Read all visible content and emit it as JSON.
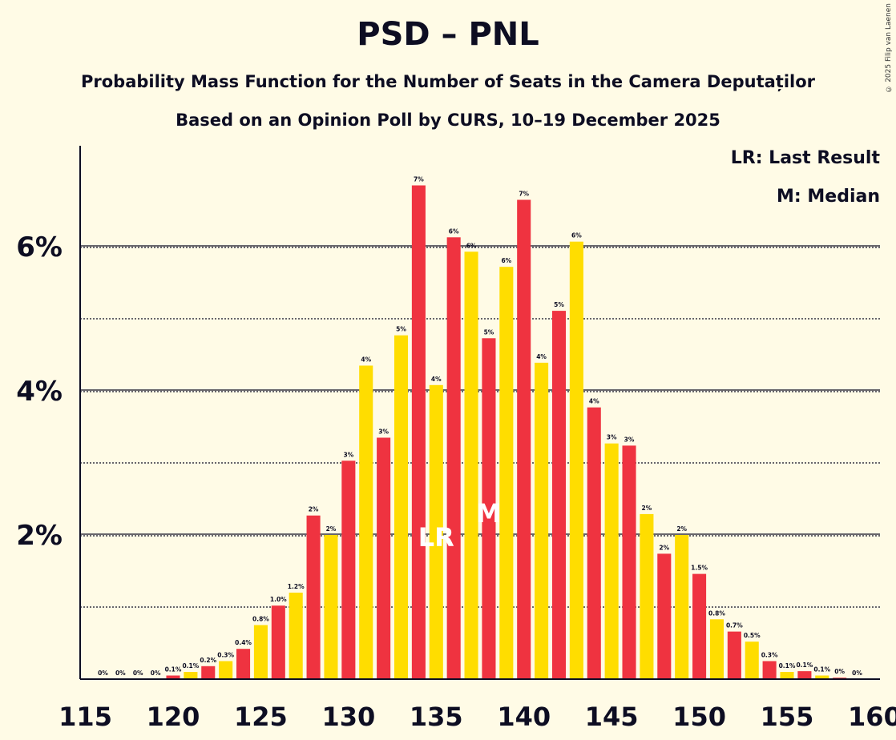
{
  "title": "PSD – PNL",
  "subtitle": "Probability Mass Function for the Number of Seats in the Camera Deputaților",
  "subtitle2": "Based on an Opinion Poll by CURS, 10–19 December 2025",
  "copyright": "© 2025 Filip van Laenen",
  "legend": {
    "last_result": "LR: Last Result",
    "median": "M: Median"
  },
  "colors": {
    "red": "#ef3340",
    "yellow": "#ffdd00",
    "background": "#fffbe6",
    "text": "#0d0d22"
  },
  "chart_data": {
    "type": "bar",
    "xlabel": "",
    "ylabel": "",
    "ylim": [
      0,
      7.4
    ],
    "y_ticks": [
      {
        "value": 2,
        "label": "2%"
      },
      {
        "value": 4,
        "label": "4%"
      },
      {
        "value": 6,
        "label": "6%"
      }
    ],
    "minor_grid": [
      1,
      3,
      5
    ],
    "x_ticks": [
      115,
      120,
      125,
      130,
      135,
      140,
      145,
      150,
      155,
      160
    ],
    "x_tick_labels": [
      "115",
      "120",
      "125",
      "130",
      "135",
      "140",
      "145",
      "150",
      "155",
      "160"
    ],
    "categories": [
      116,
      117,
      118,
      119,
      120,
      121,
      122,
      123,
      124,
      125,
      126,
      127,
      128,
      129,
      130,
      131,
      132,
      133,
      134,
      135,
      136,
      137,
      138,
      139,
      140,
      141,
      142,
      143,
      144,
      145,
      146,
      147,
      148,
      149,
      150,
      151,
      152,
      153,
      154,
      155,
      156,
      157,
      158,
      159
    ],
    "values": [
      0,
      0,
      0,
      0,
      0.05,
      0.1,
      0.18,
      0.25,
      0.42,
      0.75,
      1.02,
      1.2,
      2.27,
      2.0,
      3.03,
      4.35,
      3.35,
      4.77,
      6.85,
      4.08,
      6.13,
      5.93,
      4.73,
      5.72,
      6.65,
      4.39,
      5.11,
      6.07,
      3.77,
      3.27,
      3.24,
      2.29,
      1.74,
      2.0,
      1.46,
      0.83,
      0.66,
      0.52,
      0.25,
      0.1,
      0.11,
      0.05,
      0.02,
      0
    ],
    "data_labels": [
      "0%",
      "0%",
      "0%",
      "0%",
      "0.1%",
      "0.1%",
      "0.2%",
      "0.3%",
      "0.4%",
      "0.8%",
      "1.0%",
      "1.2%",
      "2%",
      "2%",
      "3%",
      "4%",
      "3%",
      "5%",
      "7%",
      "4%",
      "6%",
      "6%",
      "5%",
      "6%",
      "7%",
      "4%",
      "5%",
      "6%",
      "4%",
      "3%",
      "3%",
      "2%",
      "2%",
      "2%",
      "1.5%",
      "0.8%",
      "0.7%",
      "0.5%",
      "0.3%",
      "0.1%",
      "0.1%",
      "0.1%",
      "0%",
      "0%"
    ],
    "colors": [
      "yellow",
      "yellow",
      "yellow",
      "yellow",
      "red",
      "yellow",
      "red",
      "yellow",
      "red",
      "yellow",
      "red",
      "yellow",
      "red",
      "yellow",
      "red",
      "yellow",
      "red",
      "yellow",
      "red",
      "yellow",
      "red",
      "yellow",
      "red",
      "yellow",
      "red",
      "yellow",
      "red",
      "yellow",
      "red",
      "yellow",
      "red",
      "yellow",
      "red",
      "yellow",
      "red",
      "yellow",
      "red",
      "yellow",
      "red",
      "yellow",
      "red",
      "yellow",
      "red",
      "yellow"
    ],
    "markers": [
      {
        "seat": 135,
        "label": "LR"
      },
      {
        "seat": 138,
        "label": "M"
      }
    ]
  }
}
